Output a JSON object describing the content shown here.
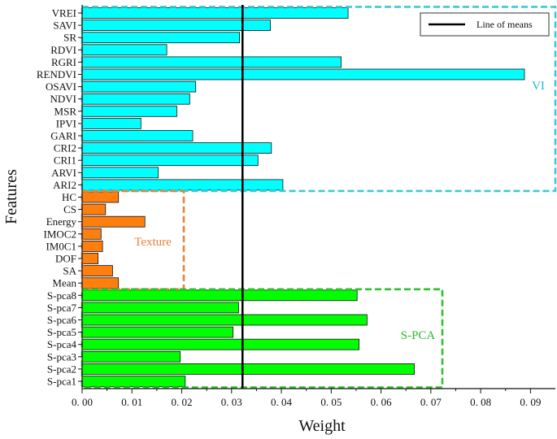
{
  "chart_data": {
    "type": "bar",
    "orientation": "horizontal",
    "title": "",
    "xlabel": "Weight",
    "ylabel": "Features",
    "xlim": [
      0,
      0.095
    ],
    "xticks": [
      0,
      0.01,
      0.02,
      0.03,
      0.04,
      0.05,
      0.06,
      0.07,
      0.08,
      0.09
    ],
    "xtick_labels": [
      "0. 00",
      "0. 01",
      "0. 02",
      "0. 03",
      "0. 04",
      "0. 05",
      "0. 06",
      "0. 07",
      "0. 08",
      "0. 09"
    ],
    "mean_line": {
      "value": 0.0322,
      "label": "Line of means",
      "color": "#000000"
    },
    "legend_position": "top-right",
    "groups": [
      {
        "name": "VI",
        "color": "#00FFFF",
        "box_color": "#3fc9d4",
        "label_color": "#1fb8c8",
        "features": [
          "VREI",
          "SAVI",
          "SR",
          "RDVI",
          "RGRI",
          "RENDVI",
          "OSAVI",
          "NDVI",
          "MSR",
          "IPVI",
          "GARI",
          "CRI2",
          "CRI1",
          "ARVI",
          "ARI2"
        ],
        "values": [
          0.0534,
          0.0378,
          0.0316,
          0.017,
          0.052,
          0.0888,
          0.0228,
          0.0216,
          0.019,
          0.0118,
          0.0222,
          0.038,
          0.0353,
          0.0153,
          0.0403
        ]
      },
      {
        "name": "Texture",
        "color": "#FF7F0E",
        "box_color": "#e8823a",
        "label_color": "#e8823a",
        "features": [
          "HC",
          "CS",
          "Energy",
          "IMOC2",
          "IM0C1",
          "DOF",
          "SA",
          "Mean"
        ],
        "values": [
          0.0073,
          0.0047,
          0.0126,
          0.0038,
          0.0041,
          0.0032,
          0.0061,
          0.0073
        ]
      },
      {
        "name": "S-PCA",
        "color": "#00FF00",
        "box_color": "#2fc22f",
        "label_color": "#2fb52f",
        "features": [
          "S-pca8",
          "S-pca7",
          "S-pca6",
          "S-pca5",
          "S-pca4",
          "S-pca3",
          "S-pca2",
          "S-pca1"
        ],
        "values": [
          0.0552,
          0.0314,
          0.0572,
          0.0303,
          0.0556,
          0.0197,
          0.0667,
          0.0207
        ]
      }
    ]
  }
}
